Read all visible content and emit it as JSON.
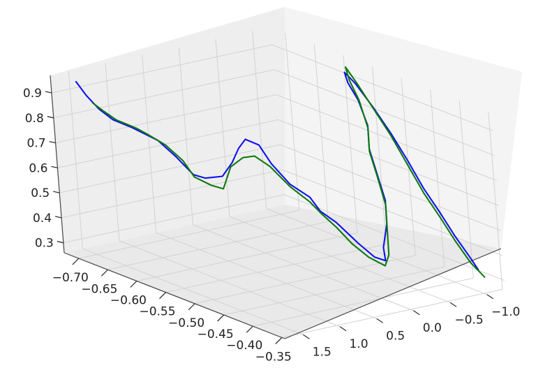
{
  "chart_data": {
    "type": "line",
    "projection": "3d",
    "title": "",
    "xlabel": "",
    "ylabel": "",
    "zlabel": "",
    "grid": true,
    "x_axis": {
      "ticks": [
        -0.7,
        -0.65,
        -0.6,
        -0.55,
        -0.5,
        -0.45,
        -0.4,
        -0.35
      ],
      "tick_labels": [
        "−0.70",
        "−0.65",
        "−0.60",
        "−0.55",
        "−0.50",
        "−0.45",
        "−0.40",
        "−0.35"
      ]
    },
    "y_axis": {
      "ticks": [
        -1.0,
        -0.5,
        0.0,
        0.5,
        1.0,
        1.5
      ],
      "tick_labels": [
        "−1.0",
        "−0.5",
        "0.0",
        "0.5",
        "1.0",
        "1.5"
      ]
    },
    "z_axis": {
      "ticks": [
        0.3,
        0.4,
        0.5,
        0.6,
        0.7,
        0.8,
        0.9
      ],
      "tick_labels": [
        "0.3",
        "0.4",
        "0.5",
        "0.6",
        "0.7",
        "0.8",
        "0.9"
      ]
    },
    "series": [
      {
        "color": "#1010ee",
        "points": [
          [
            -0.72,
            1.45,
            0.93
          ],
          [
            -0.71,
            1.4,
            0.88
          ],
          [
            -0.7,
            1.32,
            0.83
          ],
          [
            -0.69,
            1.22,
            0.79
          ],
          [
            -0.67,
            1.12,
            0.77
          ],
          [
            -0.64,
            1.02,
            0.74
          ],
          [
            -0.62,
            0.95,
            0.69
          ],
          [
            -0.6,
            0.88,
            0.63
          ],
          [
            -0.59,
            0.8,
            0.62
          ],
          [
            -0.57,
            0.72,
            0.64
          ],
          [
            -0.56,
            0.65,
            0.7
          ],
          [
            -0.56,
            0.55,
            0.75
          ],
          [
            -0.56,
            0.45,
            0.78
          ],
          [
            -0.55,
            0.35,
            0.76
          ],
          [
            -0.54,
            0.28,
            0.69
          ],
          [
            -0.52,
            0.2,
            0.62
          ],
          [
            -0.5,
            0.1,
            0.58
          ],
          [
            -0.49,
            0.05,
            0.53
          ],
          [
            -0.47,
            0.0,
            0.5
          ],
          [
            -0.44,
            -0.05,
            0.44
          ],
          [
            -0.42,
            -0.1,
            0.4
          ],
          [
            -0.41,
            -0.17,
            0.39
          ],
          [
            -0.42,
            -0.23,
            0.43
          ],
          [
            -0.42,
            -0.3,
            0.52
          ],
          [
            -0.43,
            -0.38,
            0.6
          ],
          [
            -0.45,
            -0.45,
            0.68
          ],
          [
            -0.47,
            -0.52,
            0.76
          ],
          [
            -0.48,
            -0.6,
            0.84
          ],
          [
            -0.5,
            -0.65,
            0.92
          ],
          [
            -0.52,
            -0.68,
            0.97
          ],
          [
            -0.53,
            -0.72,
            1.0
          ],
          [
            -0.52,
            -0.78,
            0.96
          ],
          [
            -0.5,
            -0.84,
            0.88
          ],
          [
            -0.48,
            -0.9,
            0.79
          ],
          [
            -0.46,
            -0.94,
            0.7
          ],
          [
            -0.44,
            -0.98,
            0.6
          ],
          [
            -0.42,
            -1.02,
            0.52
          ],
          [
            -0.4,
            -1.05,
            0.44
          ],
          [
            -0.38,
            -1.08,
            0.37
          ],
          [
            -0.37,
            -1.1,
            0.33
          ]
        ]
      },
      {
        "color": "#0e7a0e",
        "points": [
          [
            -0.7,
            1.4,
            0.86
          ],
          [
            -0.69,
            1.33,
            0.83
          ],
          [
            -0.68,
            1.25,
            0.8
          ],
          [
            -0.66,
            1.15,
            0.78
          ],
          [
            -0.65,
            1.08,
            0.76
          ],
          [
            -0.63,
            1.0,
            0.73
          ],
          [
            -0.61,
            0.93,
            0.68
          ],
          [
            -0.6,
            0.87,
            0.62
          ],
          [
            -0.58,
            0.8,
            0.6
          ],
          [
            -0.57,
            0.72,
            0.59
          ],
          [
            -0.57,
            0.66,
            0.63
          ],
          [
            -0.57,
            0.6,
            0.67
          ],
          [
            -0.56,
            0.5,
            0.71
          ],
          [
            -0.55,
            0.42,
            0.72
          ],
          [
            -0.54,
            0.3,
            0.68
          ],
          [
            -0.52,
            0.2,
            0.61
          ],
          [
            -0.5,
            0.1,
            0.56
          ],
          [
            -0.49,
            0.04,
            0.52
          ],
          [
            -0.47,
            0.0,
            0.48
          ],
          [
            -0.45,
            -0.04,
            0.43
          ],
          [
            -0.43,
            -0.1,
            0.39
          ],
          [
            -0.41,
            -0.16,
            0.37
          ],
          [
            -0.41,
            -0.22,
            0.41
          ],
          [
            -0.42,
            -0.3,
            0.5
          ],
          [
            -0.43,
            -0.38,
            0.58
          ],
          [
            -0.45,
            -0.45,
            0.67
          ],
          [
            -0.47,
            -0.52,
            0.75
          ],
          [
            -0.48,
            -0.6,
            0.83
          ],
          [
            -0.5,
            -0.66,
            0.92
          ],
          [
            -0.52,
            -0.7,
            0.98
          ],
          [
            -0.53,
            -0.74,
            1.02
          ],
          [
            -0.52,
            -0.8,
            0.96
          ],
          [
            -0.5,
            -0.85,
            0.87
          ],
          [
            -0.48,
            -0.9,
            0.78
          ],
          [
            -0.46,
            -0.94,
            0.68
          ],
          [
            -0.44,
            -0.98,
            0.58
          ],
          [
            -0.42,
            -1.02,
            0.5
          ],
          [
            -0.4,
            -1.05,
            0.42
          ],
          [
            -0.38,
            -1.08,
            0.35
          ],
          [
            -0.36,
            -1.1,
            0.31
          ]
        ]
      }
    ]
  }
}
